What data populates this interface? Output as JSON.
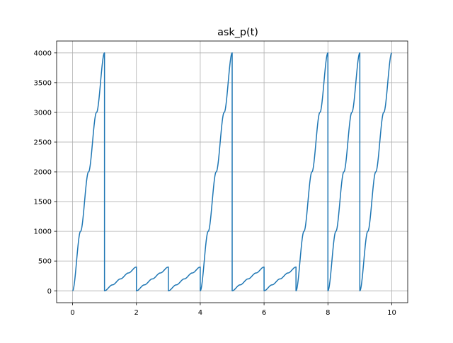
{
  "chart_data": {
    "type": "line",
    "title": "ask_p(t)",
    "xlabel": "",
    "ylabel": "",
    "xlim": [
      -0.5,
      10.5
    ],
    "ylim": [
      -200,
      4200
    ],
    "xticks": [
      0,
      2,
      4,
      6,
      8,
      10
    ],
    "yticks": [
      0,
      500,
      1000,
      1500,
      2000,
      2500,
      3000,
      3500,
      4000
    ],
    "grid": true,
    "series_color": "#1f77b4",
    "series": [
      {
        "segments": [
          {
            "t_start": 0,
            "t_end": 1,
            "levels": [
              0,
              1000,
              2000,
              3000,
              4000
            ]
          },
          {
            "t_start": 1,
            "t_end": 2,
            "levels": [
              0,
              100,
              200,
              300,
              400
            ]
          },
          {
            "t_start": 2,
            "t_end": 3,
            "levels": [
              0,
              100,
              200,
              300,
              400
            ]
          },
          {
            "t_start": 3,
            "t_end": 4,
            "levels": [
              0,
              100,
              200,
              300,
              400
            ]
          },
          {
            "t_start": 4,
            "t_end": 5,
            "levels": [
              0,
              1000,
              2000,
              3000,
              4000
            ]
          },
          {
            "t_start": 5,
            "t_end": 6,
            "levels": [
              0,
              100,
              200,
              300,
              400
            ]
          },
          {
            "t_start": 6,
            "t_end": 7,
            "levels": [
              0,
              100,
              200,
              300,
              400
            ]
          },
          {
            "t_start": 7,
            "t_end": 8,
            "levels": [
              0,
              1000,
              2000,
              3000,
              4000
            ]
          },
          {
            "t_start": 8,
            "t_end": 9,
            "levels": [
              0,
              1000,
              2000,
              3000,
              4000
            ]
          },
          {
            "t_start": 9,
            "t_end": 10,
            "levels": [
              0,
              1000,
              2000,
              3000,
              4000
            ]
          }
        ]
      }
    ]
  }
}
